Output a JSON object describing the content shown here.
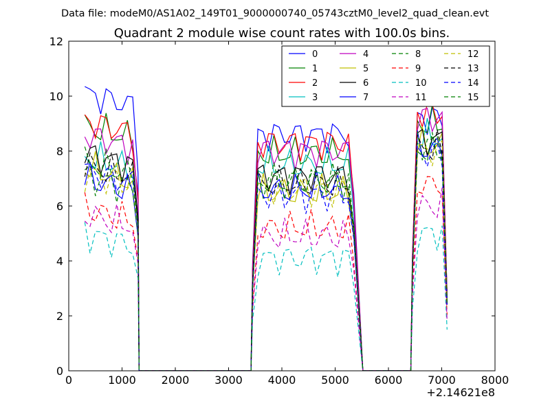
{
  "suptitle": "Data file: modeM0/AS1A02_149T01_9000000740_05743cztM0_level2_quad_clean.evt",
  "chart_data": {
    "type": "line",
    "title": "Quadrant 2 module wise count rates with 100.0s bins.",
    "xlabel": "",
    "ylabel": "",
    "x_offset_label": "+2.14621e8",
    "xlim": [
      0,
      8000
    ],
    "ylim": [
      0,
      12
    ],
    "x_ticks": [
      "0",
      "1000",
      "2000",
      "3000",
      "4000",
      "5000",
      "6000",
      "7000",
      "8000"
    ],
    "y_ticks": [
      "0",
      "2",
      "4",
      "6",
      "8",
      "10",
      "12"
    ],
    "grid": false,
    "legend_position": "top-right",
    "legend_columns": 4,
    "segments": [
      {
        "x_start": 300,
        "x_end": 1300,
        "drop_to_zero_at": 1320
      },
      {
        "x_start": 3450,
        "x_end": 5350,
        "drop_to_zero_at": 5520
      },
      {
        "x_start": 6450,
        "x_end": 7100
      }
    ],
    "series": [
      {
        "name": "0",
        "color": "#0000ff",
        "dash": "solid",
        "levels": [
          9.6,
          8.6,
          9.2
        ]
      },
      {
        "name": "1",
        "color": "#008000",
        "dash": "solid",
        "levels": [
          8.4,
          7.9,
          9.0
        ]
      },
      {
        "name": "2",
        "color": "#ff0000",
        "dash": "solid",
        "levels": [
          8.6,
          8.3,
          9.4
        ]
      },
      {
        "name": "3",
        "color": "#00bfbf",
        "dash": "solid",
        "levels": [
          7.3,
          7.5,
          8.5
        ]
      },
      {
        "name": "4",
        "color": "#bf00bf",
        "dash": "solid",
        "levels": [
          8.1,
          8.0,
          9.2
        ]
      },
      {
        "name": "5",
        "color": "#bfbf00",
        "dash": "solid",
        "levels": [
          6.9,
          6.5,
          8.2
        ]
      },
      {
        "name": "6",
        "color": "#000000",
        "dash": "solid",
        "levels": [
          7.4,
          7.1,
          8.4
        ]
      },
      {
        "name": "7",
        "color": "#0000ff",
        "dash": "solid",
        "levels": [
          6.5,
          6.6,
          8.1
        ]
      },
      {
        "name": "8",
        "color": "#008000",
        "dash": "dashed",
        "levels": [
          6.6,
          6.9,
          8.3
        ]
      },
      {
        "name": "9",
        "color": "#ff0000",
        "dash": "dashed",
        "levels": [
          5.4,
          5.2,
          6.8
        ]
      },
      {
        "name": "10",
        "color": "#00bfbf",
        "dash": "dashed",
        "levels": [
          4.5,
          4.1,
          5.0
        ]
      },
      {
        "name": "11",
        "color": "#bf00bf",
        "dash": "dashed",
        "levels": [
          5.2,
          4.9,
          6.0
        ]
      },
      {
        "name": "12",
        "color": "#bfbf00",
        "dash": "dashed",
        "levels": [
          6.7,
          6.6,
          8.0
        ]
      },
      {
        "name": "13",
        "color": "#000000",
        "dash": "dashed",
        "levels": [
          7.0,
          6.8,
          8.1
        ]
      },
      {
        "name": "14",
        "color": "#0000ff",
        "dash": "dashed",
        "levels": [
          6.8,
          6.4,
          7.9
        ]
      },
      {
        "name": "15",
        "color": "#008000",
        "dash": "dashed",
        "levels": [
          7.1,
          6.9,
          8.0
        ]
      }
    ]
  }
}
